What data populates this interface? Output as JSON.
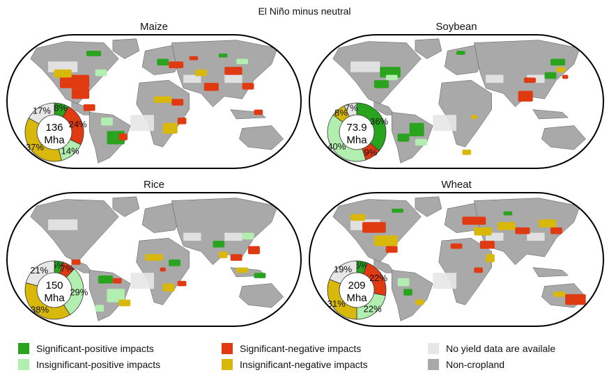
{
  "title": "El Niño minus neutral",
  "colors": {
    "sig_pos": "#2aa31f",
    "insig_pos": "#b2eeb0",
    "sig_neg": "#e03a13",
    "insig_neg": "#d8b80a",
    "no_data": "#e7e7e7",
    "non_crop": "#a9a9a9",
    "ocean": "#ffffff",
    "outline": "#000000"
  },
  "legend": [
    {
      "key": "sig_pos",
      "label": "Significant-positive impacts"
    },
    {
      "key": "insig_pos",
      "label": "Insignificant-positive impacts"
    },
    {
      "key": "sig_neg",
      "label": "Significant-negative impacts"
    },
    {
      "key": "insig_neg",
      "label": "Insignificant-negative impacts"
    },
    {
      "key": "no_data",
      "label": "No yield data are availale"
    },
    {
      "key": "non_crop",
      "label": "Non-cropland"
    }
  ],
  "panels": [
    {
      "id": "maize",
      "title": "Maize",
      "area_value": "136",
      "area_unit": "Mha",
      "shares": {
        "sig_pos": 8,
        "sig_neg": 24,
        "insig_pos": 14,
        "insig_neg": 37,
        "no_data": 17
      },
      "labels": [
        "8%",
        "24%",
        "14%",
        "37%",
        "17%"
      ]
    },
    {
      "id": "soybean",
      "title": "Soybean",
      "area_value": "73.9",
      "area_unit": "Mha",
      "shares": {
        "sig_pos": 36,
        "sig_neg": 9,
        "insig_pos": 40,
        "insig_neg": 8,
        "no_data": 7
      },
      "labels": [
        "36%",
        "9%",
        "40%",
        "8%",
        "7%"
      ]
    },
    {
      "id": "rice",
      "title": "Rice",
      "area_value": "150",
      "area_unit": "Mha",
      "shares": {
        "sig_pos": 5,
        "sig_neg": 7,
        "insig_pos": 29,
        "insig_neg": 38,
        "no_data": 21
      },
      "labels": [
        "5%",
        "7%",
        "29%",
        "38%",
        "21%"
      ]
    },
    {
      "id": "wheat",
      "title": "Wheat",
      "area_value": "209",
      "area_unit": "Mha",
      "shares": {
        "sig_pos": 6,
        "sig_neg": 22,
        "insig_pos": 22,
        "insig_neg": 31,
        "no_data": 19
      },
      "labels": [
        "6%",
        "22%",
        "22%",
        "31%",
        "19%"
      ]
    }
  ]
}
